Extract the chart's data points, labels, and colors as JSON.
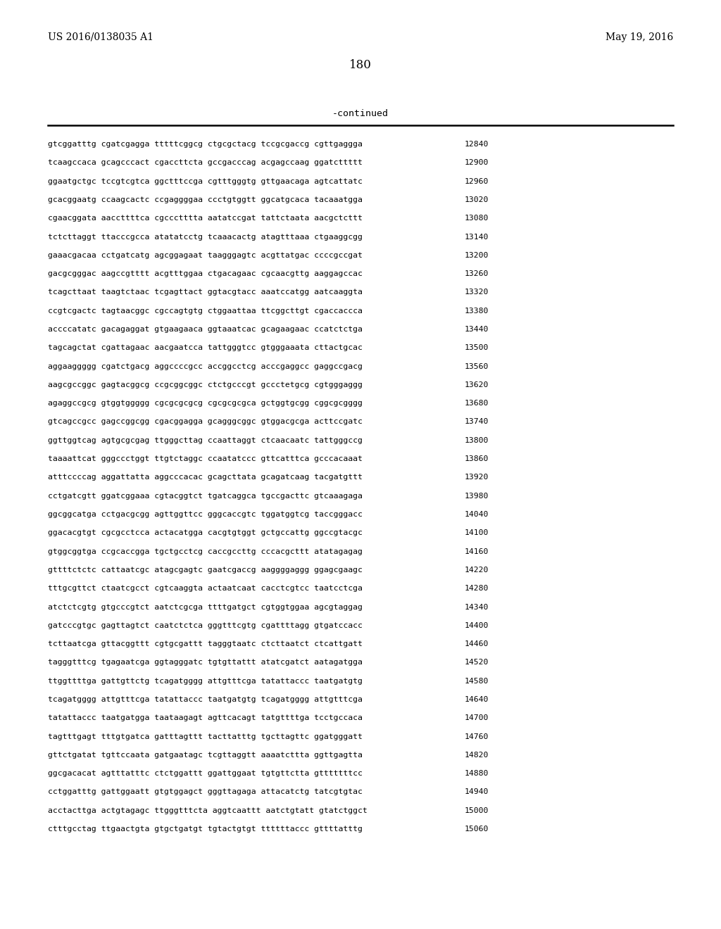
{
  "header_left": "US 2016/0138035 A1",
  "header_right": "May 19, 2016",
  "page_number": "180",
  "continued_text": "-continued",
  "background_color": "#ffffff",
  "text_color": "#000000",
  "sequence_lines": [
    [
      "gtcggatttg cgatcgagga tttttcggcg ctgcgctacg tccgcgaccg cgttgaggga",
      "12840"
    ],
    [
      "tcaagccaca gcagcccact cgaccttcta gccgacccag acgagccaag ggatcttttt",
      "12900"
    ],
    [
      "ggaatgctgc tccgtcgtca ggctttccga cgtttgggtg gttgaacaga agtcattatc",
      "12960"
    ],
    [
      "gcacggaatg ccaagcactc ccgaggggaa ccctgtggtt ggcatgcaca tacaaatgga",
      "13020"
    ],
    [
      "cgaacggata aaccttttca cgccctttta aatatccgat tattctaata aacgctcttt",
      "13080"
    ],
    [
      "tctcttaggt ttacccgcca atatatcctg tcaaacactg atagtttaaa ctgaaggcgg",
      "13140"
    ],
    [
      "gaaacgacaa cctgatcatg agcggagaat taagggagtc acgttatgac ccccgccgat",
      "13200"
    ],
    [
      "gacgcgggac aagccgtttt acgtttggaa ctgacagaac cgcaacgttg aaggagccac",
      "13260"
    ],
    [
      "tcagcttaat taagtctaac tcgagttact ggtacgtacc aaatccatgg aatcaaggta",
      "13320"
    ],
    [
      "ccgtcgactc tagtaacggc cgccagtgtg ctggaattaa ttcggcttgt cgaccaccca",
      "13380"
    ],
    [
      "accccatatc gacagaggat gtgaagaaca ggtaaatcac gcagaagaac ccatctctga",
      "13440"
    ],
    [
      "tagcagctat cgattagaac aacgaatcca tattgggtcc gtgggaaata cttactgcac",
      "13500"
    ],
    [
      "aggaaggggg cgatctgacg aggccccgcc accggcctcg acccgaggcc gaggccgacg",
      "13560"
    ],
    [
      "aagcgccggc gagtacggcg ccgcggcggc ctctgcccgt gccctetgcg cgtgggaggg",
      "13620"
    ],
    [
      "agaggccgcg gtggtggggg cgcgcgcgcg cgcgcgcgca gctggtgcgg cggcgcgggg",
      "13680"
    ],
    [
      "gtcagccgcc gagccggcgg cgacggagga gcagggcggc gtggacgcga acttccgatc",
      "13740"
    ],
    [
      "ggttggtcag agtgcgcgag ttgggcttag ccaattaggt ctcaacaatc tattgggccg",
      "13800"
    ],
    [
      "taaaattcat gggccctggt ttgtctaggc ccaatatccc gttcatttca gcccacaaat",
      "13860"
    ],
    [
      "atttccccag aggattatta aggcccacac gcagcttata gcagatcaag tacgatgttt",
      "13920"
    ],
    [
      "cctgatcgtt ggatcggaaa cgtacggtct tgatcaggca tgccgacttc gtcaaagaga",
      "13980"
    ],
    [
      "ggcggcatga cctgacgcgg agttggttcc gggcaccgtc tggatggtcg taccgggacc",
      "14040"
    ],
    [
      "ggacacgtgt cgcgcctcca actacatgga cacgtgtggt gctgccattg ggccgtacgc",
      "14100"
    ],
    [
      "gtggcggtga ccgcaccgga tgctgcctcg caccgccttg cccacgcttt atatagagag",
      "14160"
    ],
    [
      "gttttctctc cattaatcgc atagcgagtc gaatcgaccg aaggggaggg ggagcgaagc",
      "14220"
    ],
    [
      "tttgcgttct ctaatcgcct cgtcaaggta actaatcaat cacctcgtcc taatcctcga",
      "14280"
    ],
    [
      "atctctcgtg gtgcccgtct aatctcgcga ttttgatgct cgtggtggaa agcgtaggag",
      "14340"
    ],
    [
      "gatcccgtgc gagttagtct caatctctca gggtttcgtg cgattttagg gtgatccacc",
      "14400"
    ],
    [
      "tcttaatcga gttacggttt cgtgcgattt tagggtaatc ctcttaatct ctcattgatt",
      "14460"
    ],
    [
      "tagggtttcg tgagaatcga ggtagggatc tgtgttattt atatcgatct aatagatgga",
      "14520"
    ],
    [
      "ttggttttga gattgttctg tcagatgggg attgtttcga tatattaccc taatgatgtg",
      "14580"
    ],
    [
      "tcagatgggg attgtttcga tatattaccc taatgatgtg tcagatgggg attgtttcga",
      "14640"
    ],
    [
      "tatattaccc taatgatgga taataagagt agttcacagt tatgttttga tcctgccaca",
      "14700"
    ],
    [
      "tagtttgagt tttgtgatca gatttagttt tacttatttg tgcttagttc ggatgggatt",
      "14760"
    ],
    [
      "gttctgatat tgttccaata gatgaatagc tcgttaggtt aaaatcttta ggttgagtta",
      "14820"
    ],
    [
      "ggcgacacat agtttatttc ctctggattt ggattggaat tgtgttctta gtttttttcc",
      "14880"
    ],
    [
      "cctggatttg gattggaatt gtgtggagct gggttagaga attacatctg tatcgtgtac",
      "14940"
    ],
    [
      "acctacttga actgtagagc ttgggtttcta aggtcaattt aatctgtatt gtatctggct",
      "15000"
    ],
    [
      "ctttgcctag ttgaactgta gtgctgatgt tgtactgtgt ttttttaccc gttttatttg",
      "15060"
    ]
  ]
}
